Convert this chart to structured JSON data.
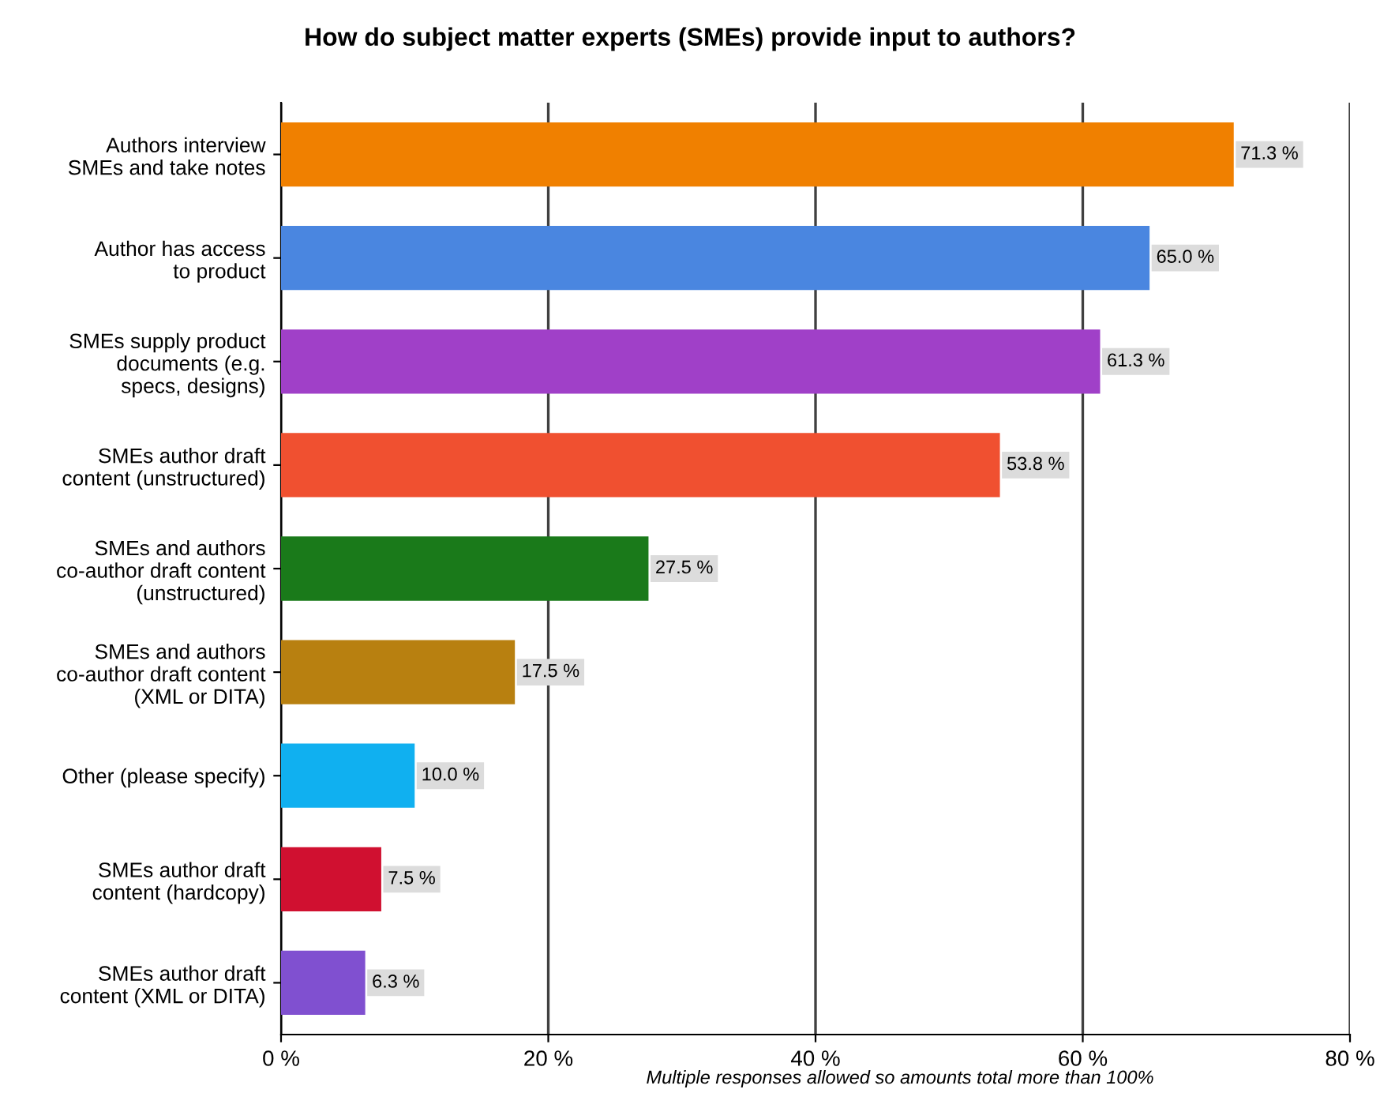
{
  "chart_data": {
    "type": "bar",
    "orientation": "horizontal",
    "title": "How do subject matter experts (SMEs) provide input to authors?",
    "categories": [
      "Authors interview\nSMEs and take notes",
      "Author has access\nto product",
      "SMEs supply product\ndocuments (e.g.\nspecs, designs)",
      "SMEs author draft\ncontent (unstructured)",
      "SMEs and authors\nco-author draft content\n(unstructured)",
      "SMEs and authors\nco-author draft content\n(XML or DITA)",
      "Other (please specify)",
      "SMEs author draft\ncontent (hardcopy)",
      "SMEs author draft\ncontent (XML or DITA)"
    ],
    "values": [
      71.3,
      65.0,
      61.3,
      53.8,
      27.5,
      17.5,
      10.0,
      7.5,
      6.3
    ],
    "value_labels": [
      "71.3 %",
      "65.0 %",
      "61.3 %",
      "53.8 %",
      "27.5 %",
      "17.5 %",
      "10.0 %",
      "7.5 %",
      "6.3 %"
    ],
    "colors": [
      "#f08000",
      "#4a86e0",
      "#a040c8",
      "#f05030",
      "#1a7a1a",
      "#b88010",
      "#10b0f0",
      "#d01030",
      "#8050d0"
    ],
    "xlim": [
      0,
      80
    ],
    "xticks": [
      {
        "value": 0,
        "label": "0 %"
      },
      {
        "value": 20,
        "label": "20 %"
      },
      {
        "value": 40,
        "label": "40 %"
      },
      {
        "value": 60,
        "label": "60 %"
      },
      {
        "value": 80,
        "label": "80 %"
      }
    ],
    "grid": "x",
    "annotations": [
      "Multiple responses allowed so amounts total more than 100%"
    ]
  }
}
